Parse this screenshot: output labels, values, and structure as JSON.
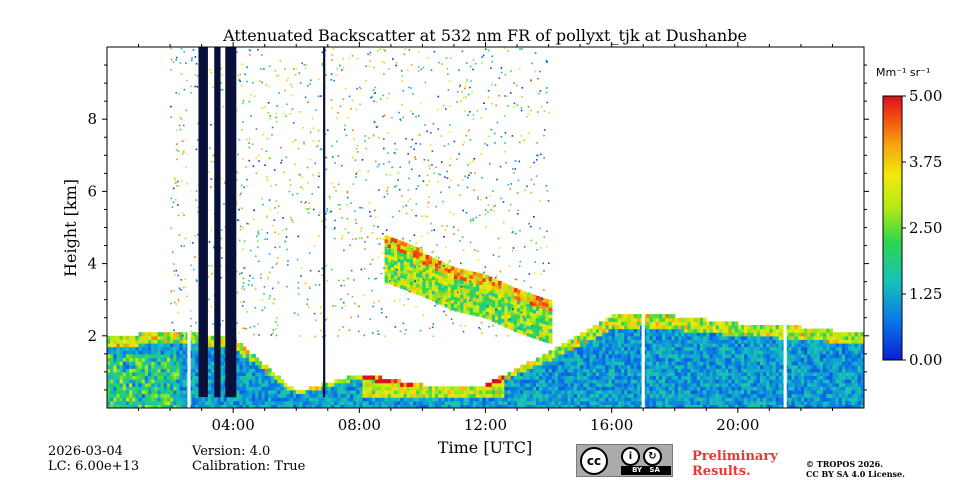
{
  "chart_data": {
    "type": "heatmap",
    "title": "Attenuated Backscatter at 532 nm FR of pollyxt_tjk at Dushanbe",
    "xlabel": "Time [UTC]",
    "ylabel": "Height [km]",
    "xlim": [
      0,
      24
    ],
    "ylim": [
      0,
      10
    ],
    "xticks": [
      4,
      8,
      12,
      16,
      20
    ],
    "xtick_labels": [
      "04:00",
      "08:00",
      "12:00",
      "16:00",
      "20:00"
    ],
    "yticks": [
      2,
      4,
      6,
      8
    ],
    "ytick_labels": [
      "2",
      "4",
      "6",
      "8"
    ],
    "colorbar": {
      "label": "Mm⁻¹ sr⁻¹",
      "min": 0.0,
      "max": 5.0,
      "ticks": [
        0.0,
        1.25,
        2.5,
        3.75,
        5.0
      ],
      "tick_labels": [
        "0.00",
        "1.25",
        "2.50",
        "3.75",
        "5.00"
      ]
    },
    "features": {
      "boundary_layer_top_km": [
        [
          0,
          1.9
        ],
        [
          2,
          2.1
        ],
        [
          4,
          1.9
        ],
        [
          6,
          0.4
        ],
        [
          8,
          0.9
        ],
        [
          10,
          0.6
        ],
        [
          12,
          0.6
        ],
        [
          14,
          1.5
        ],
        [
          15,
          2.0
        ],
        [
          16,
          2.5
        ],
        [
          17,
          2.6
        ],
        [
          18,
          2.5
        ],
        [
          20,
          2.3
        ],
        [
          22,
          2.2
        ],
        [
          24,
          2.0
        ]
      ],
      "elevated_layer_km": [
        [
          8.8,
          4.7
        ],
        [
          10,
          4.3
        ],
        [
          11,
          3.9
        ],
        [
          12,
          3.7
        ],
        [
          13,
          3.3
        ],
        [
          14,
          3.0
        ]
      ],
      "data_gaps_hours": [
        [
          2.55,
          2.65
        ],
        [
          16.95,
          17.05
        ],
        [
          21.45,
          21.55
        ]
      ],
      "dark_columns_hours": [
        [
          2.9,
          3.2
        ],
        [
          3.4,
          3.6
        ],
        [
          3.75,
          4.1
        ],
        [
          6.85,
          6.92
        ]
      ]
    }
  },
  "footer": {
    "date": "2026-03-04",
    "lc": "LC: 6.00e+13",
    "version": "Version: 4.0",
    "calibration": "Calibration: True",
    "preliminary_line1": "Preliminary",
    "preliminary_line2": "Results.",
    "copyright_line1": "© TROPOS 2026.",
    "copyright_line2": "CC BY SA 4.0 License.",
    "license_badge": "BY   SA"
  }
}
